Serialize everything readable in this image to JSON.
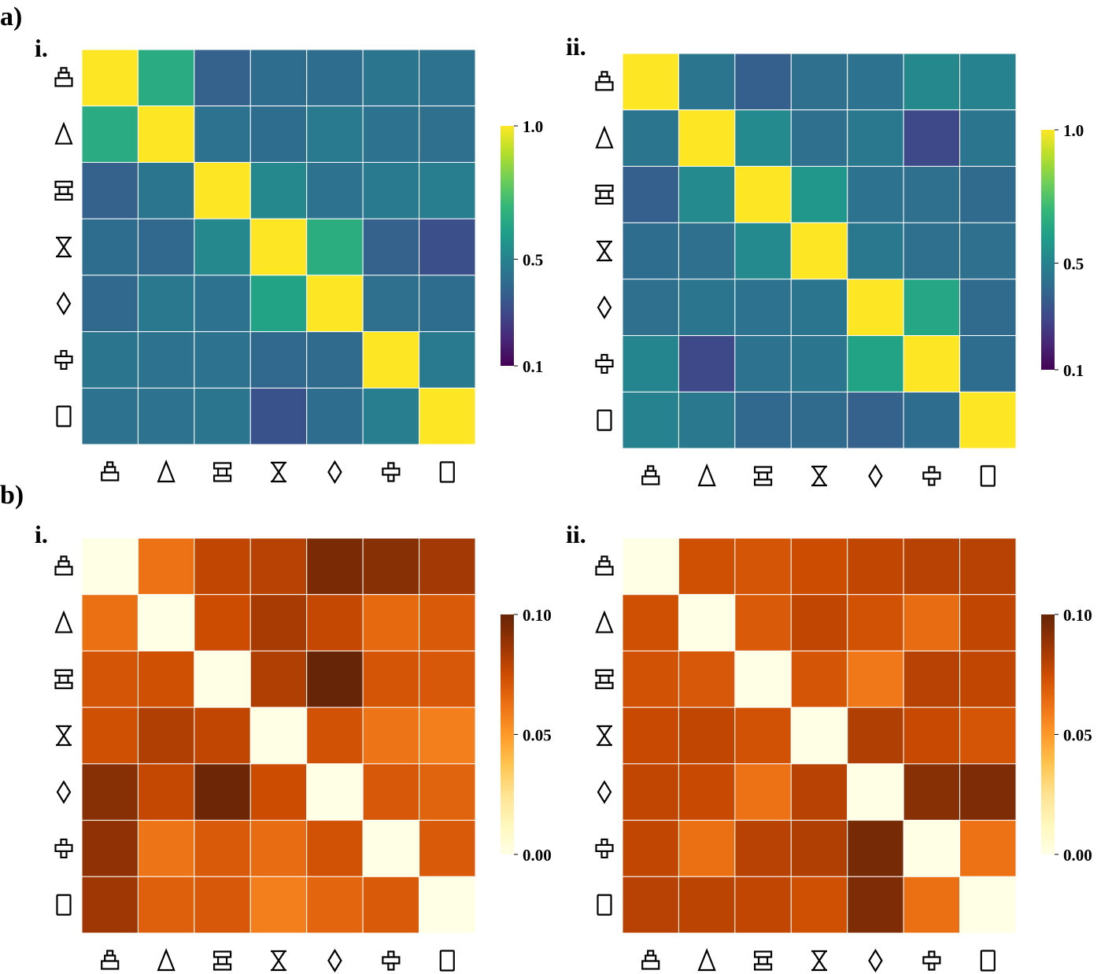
{
  "figure": {
    "panel_a_label": "a)",
    "panel_b_label": "b)"
  },
  "symbols": [
    "stacked-pyramid",
    "triangle",
    "i-beam",
    "hourglass",
    "diamond",
    "cross",
    "rectangle"
  ],
  "colormaps": {
    "viridis": [
      "#440154",
      "#482878",
      "#3e4989",
      "#31688e",
      "#26828e",
      "#1f9e89",
      "#35b779",
      "#6ece58",
      "#b5de2b",
      "#fde725"
    ],
    "YlOrBr": [
      "#ffffe5",
      "#fff7bc",
      "#fee391",
      "#fec44f",
      "#fe9929",
      "#ec7014",
      "#cc4c02",
      "#993404",
      "#662506"
    ]
  },
  "chart_data": [
    {
      "type": "heatmap",
      "panel": "a",
      "sublabel": "i.",
      "colormap": "viridis",
      "vmin": 0.1,
      "vmax": 1.0,
      "colorbar_ticks": [
        "1.0",
        "0.5",
        "0.1"
      ],
      "colorbar_tick_values": [
        1.0,
        0.5,
        0.1
      ],
      "row_labels": [
        "stacked-pyramid",
        "triangle",
        "i-beam",
        "hourglass",
        "diamond",
        "cross",
        "rectangle"
      ],
      "col_labels": [
        "stacked-pyramid",
        "triangle",
        "i-beam",
        "hourglass",
        "diamond",
        "cross",
        "rectangle"
      ],
      "values": [
        [
          1.0,
          0.65,
          0.38,
          0.42,
          0.42,
          0.45,
          0.44
        ],
        [
          0.65,
          1.0,
          0.44,
          0.42,
          0.47,
          0.44,
          0.43
        ],
        [
          0.38,
          0.45,
          1.0,
          0.52,
          0.44,
          0.47,
          0.48
        ],
        [
          0.42,
          0.4,
          0.52,
          1.0,
          0.66,
          0.38,
          0.32
        ],
        [
          0.4,
          0.46,
          0.44,
          0.62,
          1.0,
          0.43,
          0.42
        ],
        [
          0.45,
          0.44,
          0.44,
          0.4,
          0.41,
          1.0,
          0.47
        ],
        [
          0.44,
          0.44,
          0.45,
          0.33,
          0.42,
          0.48,
          1.0
        ]
      ]
    },
    {
      "type": "heatmap",
      "panel": "a",
      "sublabel": "ii.",
      "colormap": "viridis",
      "vmin": 0.1,
      "vmax": 1.0,
      "colorbar_ticks": [
        "1.0",
        "0.5",
        "0.1"
      ],
      "colorbar_tick_values": [
        1.0,
        0.5,
        0.1
      ],
      "row_labels": [
        "stacked-pyramid",
        "triangle",
        "i-beam",
        "hourglass",
        "diamond",
        "cross",
        "rectangle"
      ],
      "col_labels": [
        "stacked-pyramid",
        "triangle",
        "i-beam",
        "hourglass",
        "diamond",
        "cross",
        "rectangle"
      ],
      "values": [
        [
          1.0,
          0.45,
          0.37,
          0.43,
          0.44,
          0.52,
          0.5
        ],
        [
          0.45,
          1.0,
          0.53,
          0.43,
          0.46,
          0.3,
          0.45
        ],
        [
          0.37,
          0.53,
          1.0,
          0.57,
          0.44,
          0.43,
          0.41
        ],
        [
          0.42,
          0.43,
          0.53,
          1.0,
          0.46,
          0.43,
          0.43
        ],
        [
          0.43,
          0.45,
          0.44,
          0.45,
          1.0,
          0.63,
          0.41
        ],
        [
          0.51,
          0.3,
          0.44,
          0.45,
          0.62,
          1.0,
          0.42
        ],
        [
          0.5,
          0.46,
          0.4,
          0.41,
          0.38,
          0.42,
          1.0
        ]
      ]
    },
    {
      "type": "heatmap",
      "panel": "b",
      "sublabel": "i.",
      "colormap": "YlOrBr",
      "vmin": 0.0,
      "vmax": 0.1,
      "colorbar_ticks": [
        "0.10",
        "0.05",
        "0.00"
      ],
      "colorbar_tick_values": [
        0.1,
        0.05,
        0.0
      ],
      "row_labels": [
        "stacked-pyramid",
        "triangle",
        "i-beam",
        "hourglass",
        "diamond",
        "cross",
        "rectangle"
      ],
      "col_labels": [
        "stacked-pyramid",
        "triangle",
        "i-beam",
        "hourglass",
        "diamond",
        "cross",
        "rectangle"
      ],
      "values": [
        [
          0.0,
          0.062,
          0.078,
          0.08,
          0.095,
          0.092,
          0.085
        ],
        [
          0.063,
          0.0,
          0.075,
          0.084,
          0.077,
          0.065,
          0.07
        ],
        [
          0.072,
          0.074,
          0.0,
          0.082,
          0.1,
          0.072,
          0.071
        ],
        [
          0.074,
          0.082,
          0.078,
          0.0,
          0.073,
          0.061,
          0.058
        ],
        [
          0.092,
          0.077,
          0.098,
          0.075,
          0.0,
          0.071,
          0.067
        ],
        [
          0.09,
          0.061,
          0.07,
          0.064,
          0.073,
          0.0,
          0.07
        ],
        [
          0.086,
          0.068,
          0.071,
          0.058,
          0.066,
          0.07,
          0.0
        ]
      ]
    },
    {
      "type": "heatmap",
      "panel": "b",
      "sublabel": "ii.",
      "colormap": "YlOrBr",
      "vmin": 0.0,
      "vmax": 0.1,
      "colorbar_ticks": [
        "0.10",
        "0.05",
        "0.00"
      ],
      "colorbar_tick_values": [
        0.1,
        0.05,
        0.0
      ],
      "row_labels": [
        "stacked-pyramid",
        "triangle",
        "i-beam",
        "hourglass",
        "diamond",
        "cross",
        "rectangle"
      ],
      "col_labels": [
        "stacked-pyramid",
        "triangle",
        "i-beam",
        "hourglass",
        "diamond",
        "cross",
        "rectangle"
      ],
      "values": [
        [
          0.0,
          0.074,
          0.072,
          0.075,
          0.078,
          0.08,
          0.08
        ],
        [
          0.074,
          0.0,
          0.07,
          0.078,
          0.073,
          0.064,
          0.078
        ],
        [
          0.073,
          0.071,
          0.0,
          0.072,
          0.06,
          0.08,
          0.078
        ],
        [
          0.076,
          0.078,
          0.073,
          0.0,
          0.082,
          0.076,
          0.072
        ],
        [
          0.078,
          0.076,
          0.062,
          0.08,
          0.0,
          0.092,
          0.094
        ],
        [
          0.078,
          0.063,
          0.08,
          0.082,
          0.096,
          0.0,
          0.062
        ],
        [
          0.08,
          0.079,
          0.078,
          0.074,
          0.094,
          0.063,
          0.0
        ]
      ]
    }
  ]
}
